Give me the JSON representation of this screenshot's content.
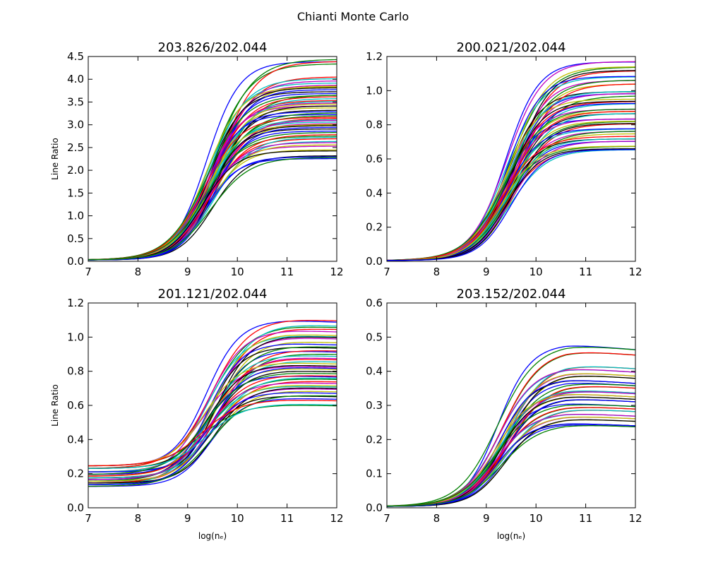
{
  "figure": {
    "title": "Chianti Monte Carlo"
  },
  "chart_data": [
    {
      "type": "line",
      "title": "203.826/202.044",
      "xlabel": "",
      "ylabel": "Line Ratio",
      "xlim": [
        7,
        12
      ],
      "ylim": [
        0,
        4.5
      ],
      "xticks": [
        "7",
        "8",
        "9",
        "10",
        "11",
        "12"
      ],
      "yticks": [
        "0.0",
        "0.5",
        "1.0",
        "1.5",
        "2.0",
        "2.5",
        "3.0",
        "3.5",
        "4.0",
        "4.5"
      ],
      "series_count_visible": "many",
      "low_plateau": 0.03,
      "midpoint_log_ne": 9.45,
      "high_plateau_values": [
        4.43,
        4.35,
        4.03,
        3.95,
        3.87,
        3.82,
        3.75,
        3.68,
        3.62,
        3.55,
        3.5,
        3.45,
        3.38,
        3.3,
        3.25,
        3.2,
        3.12,
        3.08,
        3.02,
        2.98,
        2.92,
        2.85,
        2.78,
        2.7,
        2.62,
        2.55,
        2.45,
        2.3,
        2.27
      ]
    },
    {
      "type": "line",
      "title": "200.021/202.044",
      "xlabel": "",
      "ylabel": "",
      "xlim": [
        7,
        12
      ],
      "ylim": [
        0,
        1.2
      ],
      "xticks": [
        "7",
        "8",
        "9",
        "10",
        "11",
        "12"
      ],
      "yticks": [
        "0.0",
        "0.2",
        "0.4",
        "0.6",
        "0.8",
        "1.0",
        "1.2"
      ],
      "series_count_visible": "many",
      "low_plateau": 0.005,
      "midpoint_log_ne": 9.45,
      "high_plateau_values": [
        1.18,
        1.14,
        1.11,
        1.09,
        1.06,
        1.03,
        1.0,
        0.98,
        0.96,
        0.94,
        0.92,
        0.9,
        0.88,
        0.86,
        0.84,
        0.82,
        0.8,
        0.78,
        0.76,
        0.74,
        0.72,
        0.7,
        0.68,
        0.66,
        0.65
      ]
    },
    {
      "type": "line",
      "title": "201.121/202.044",
      "xlabel": "log(nₑ)",
      "ylabel": "Line Ratio",
      "xlim": [
        7,
        12
      ],
      "ylim": [
        0,
        1.2
      ],
      "xticks": [
        "7",
        "8",
        "9",
        "10",
        "11",
        "12"
      ],
      "yticks": [
        "0.0",
        "0.2",
        "0.4",
        "0.6",
        "0.8",
        "1.0",
        "1.2"
      ],
      "series_count_visible": "many",
      "low_plateau_values": [
        0.245,
        0.23,
        0.21,
        0.195,
        0.185,
        0.175,
        0.165,
        0.155,
        0.145,
        0.135,
        0.125
      ],
      "midpoint_log_ne": 9.45,
      "high_plateau_values": [
        1.11,
        1.07,
        1.05,
        1.02,
        1.0,
        0.97,
        0.95,
        0.92,
        0.9,
        0.88,
        0.86,
        0.84,
        0.82,
        0.8,
        0.78,
        0.76,
        0.74,
        0.72,
        0.7,
        0.68,
        0.66,
        0.64,
        0.61
      ]
    },
    {
      "type": "line",
      "title": "203.152/202.044",
      "xlabel": "log(nₑ)",
      "ylabel": "",
      "xlim": [
        7,
        12
      ],
      "ylim": [
        0,
        0.6
      ],
      "xticks": [
        "7",
        "8",
        "9",
        "10",
        "11",
        "12"
      ],
      "yticks": [
        "0.0",
        "0.1",
        "0.2",
        "0.3",
        "0.4",
        "0.5",
        "0.6"
      ],
      "series_count_visible": "many",
      "low_plateau": 0.004,
      "midpoint_log_ne": 9.3,
      "high_plateau_values": [
        0.485,
        0.465,
        0.42,
        0.415,
        0.4,
        0.39,
        0.38,
        0.37,
        0.36,
        0.35,
        0.345,
        0.34,
        0.33,
        0.32,
        0.31,
        0.3,
        0.29,
        0.28,
        0.27,
        0.26,
        0.25,
        0.245
      ]
    }
  ],
  "colors": {
    "series_cycle": [
      "#0000ff",
      "#008000",
      "#ff0000",
      "#00bfbf",
      "#bf00bf",
      "#bfbf00",
      "#000000"
    ]
  }
}
